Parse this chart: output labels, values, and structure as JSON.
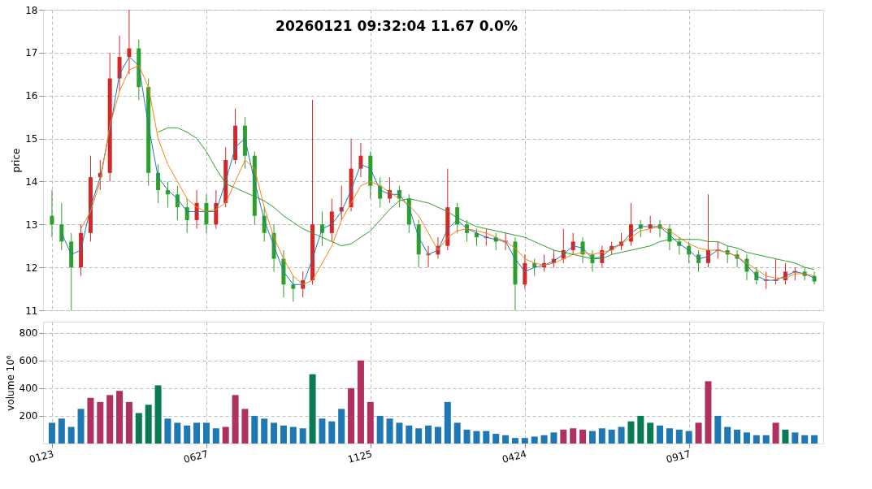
{
  "chart_data": [
    {
      "type": "candlestick",
      "title": "20260121 09:32:04   11.67 0.0%",
      "ylabel": "price",
      "ylim": [
        11,
        18
      ],
      "yticks": [
        11,
        12,
        13,
        14,
        15,
        16,
        17,
        18
      ],
      "grid": true,
      "tick_labels": "y",
      "categories": [
        "0123",
        null,
        null,
        null,
        null,
        null,
        null,
        null,
        null,
        null,
        null,
        null,
        null,
        null,
        null,
        null,
        "0627",
        null,
        null,
        null,
        null,
        null,
        null,
        null,
        null,
        null,
        null,
        null,
        null,
        null,
        null,
        null,
        null,
        "1125",
        null,
        null,
        null,
        null,
        null,
        null,
        null,
        null,
        null,
        null,
        null,
        null,
        null,
        null,
        null,
        "0424",
        null,
        null,
        null,
        null,
        null,
        null,
        null,
        null,
        null,
        null,
        null,
        null,
        null,
        null,
        null,
        null,
        "0917",
        null,
        null,
        null,
        null,
        null,
        null,
        null,
        null,
        null,
        null,
        null,
        null,
        null
      ],
      "ohlc": [
        [
          13.2,
          13.8,
          12.7,
          13.0
        ],
        [
          13.0,
          13.5,
          12.4,
          12.6
        ],
        [
          12.6,
          12.8,
          11.0,
          12.0
        ],
        [
          12.0,
          13.0,
          11.8,
          12.8
        ],
        [
          12.8,
          14.6,
          12.6,
          14.1
        ],
        [
          14.1,
          14.5,
          13.8,
          14.2
        ],
        [
          14.2,
          17.0,
          14.0,
          16.4
        ],
        [
          16.4,
          17.4,
          16.1,
          16.9
        ],
        [
          16.9,
          18.0,
          16.5,
          17.1
        ],
        [
          17.1,
          17.3,
          15.9,
          16.2
        ],
        [
          16.2,
          16.4,
          13.9,
          14.2
        ],
        [
          14.2,
          14.4,
          13.5,
          13.8
        ],
        [
          13.8,
          14.0,
          13.4,
          13.7
        ],
        [
          13.7,
          13.9,
          13.1,
          13.4
        ],
        [
          13.4,
          13.6,
          12.8,
          13.1
        ],
        [
          13.1,
          13.8,
          12.9,
          13.5
        ],
        [
          13.5,
          13.7,
          12.8,
          13.0
        ],
        [
          13.0,
          13.8,
          12.9,
          13.5
        ],
        [
          13.5,
          14.8,
          13.4,
          14.5
        ],
        [
          14.5,
          15.7,
          14.4,
          15.3
        ],
        [
          15.3,
          15.5,
          14.3,
          14.6
        ],
        [
          14.6,
          14.7,
          13.0,
          13.2
        ],
        [
          13.2,
          13.4,
          12.6,
          12.8
        ],
        [
          12.8,
          13.0,
          11.9,
          12.2
        ],
        [
          12.2,
          12.4,
          11.3,
          11.6
        ],
        [
          11.6,
          11.8,
          11.2,
          11.5
        ],
        [
          11.5,
          11.9,
          11.3,
          11.7
        ],
        [
          11.7,
          15.9,
          11.6,
          13.0
        ],
        [
          13.0,
          13.3,
          12.5,
          12.8
        ],
        [
          12.8,
          13.6,
          12.6,
          13.3
        ],
        [
          13.3,
          13.9,
          13.1,
          13.4
        ],
        [
          13.4,
          15.0,
          13.3,
          14.3
        ],
        [
          14.3,
          14.9,
          14.1,
          14.6
        ],
        [
          14.6,
          14.7,
          13.6,
          13.9
        ],
        [
          13.9,
          14.1,
          13.4,
          13.6
        ],
        [
          13.6,
          14.1,
          13.5,
          13.8
        ],
        [
          13.8,
          13.9,
          13.4,
          13.6
        ],
        [
          13.6,
          13.7,
          12.8,
          13.0
        ],
        [
          13.0,
          13.1,
          12.0,
          12.3
        ],
        [
          12.3,
          12.5,
          12.0,
          12.3
        ],
        [
          12.3,
          12.7,
          12.2,
          12.5
        ],
        [
          12.5,
          14.3,
          12.4,
          13.4
        ],
        [
          13.4,
          13.5,
          12.8,
          13.0
        ],
        [
          13.0,
          13.1,
          12.6,
          12.8
        ],
        [
          12.8,
          12.9,
          12.5,
          12.7
        ],
        [
          12.7,
          12.9,
          12.5,
          12.7
        ],
        [
          12.7,
          12.8,
          12.4,
          12.6
        ],
        [
          12.6,
          12.8,
          12.4,
          12.6
        ],
        [
          12.6,
          12.7,
          11.0,
          11.6
        ],
        [
          11.6,
          12.3,
          11.5,
          12.1
        ],
        [
          12.1,
          12.2,
          11.8,
          12.0
        ],
        [
          12.0,
          12.3,
          11.9,
          12.1
        ],
        [
          12.1,
          12.4,
          12.0,
          12.2
        ],
        [
          12.2,
          12.9,
          12.1,
          12.4
        ],
        [
          12.4,
          12.8,
          12.3,
          12.6
        ],
        [
          12.6,
          12.7,
          12.1,
          12.3
        ],
        [
          12.3,
          12.4,
          11.9,
          12.1
        ],
        [
          12.1,
          12.5,
          12.0,
          12.4
        ],
        [
          12.4,
          12.6,
          12.3,
          12.5
        ],
        [
          12.5,
          12.8,
          12.4,
          12.6
        ],
        [
          12.6,
          13.5,
          12.5,
          13.0
        ],
        [
          13.0,
          13.1,
          12.7,
          12.9
        ],
        [
          12.9,
          13.2,
          12.8,
          13.0
        ],
        [
          13.0,
          13.1,
          12.7,
          12.9
        ],
        [
          12.9,
          13.0,
          12.4,
          12.6
        ],
        [
          12.6,
          12.7,
          12.3,
          12.5
        ],
        [
          12.5,
          12.6,
          12.1,
          12.3
        ],
        [
          12.3,
          12.4,
          11.9,
          12.1
        ],
        [
          12.1,
          13.7,
          12.0,
          12.4
        ],
        [
          12.4,
          12.6,
          12.2,
          12.4
        ],
        [
          12.4,
          12.5,
          12.1,
          12.3
        ],
        [
          12.3,
          12.4,
          12.0,
          12.2
        ],
        [
          12.2,
          12.3,
          11.7,
          11.9
        ],
        [
          11.9,
          12.0,
          11.6,
          11.7
        ],
        [
          11.7,
          11.9,
          11.5,
          11.7
        ],
        [
          11.7,
          12.2,
          11.6,
          11.7
        ],
        [
          11.7,
          12.1,
          11.6,
          11.9
        ],
        [
          11.9,
          12.0,
          11.7,
          11.9
        ],
        [
          11.9,
          12.0,
          11.7,
          11.8
        ],
        [
          11.8,
          11.9,
          11.6,
          11.67
        ]
      ],
      "series": [
        {
          "type": "line",
          "color": "#1f77b4",
          "values": [
            null,
            12.8,
            12.3,
            12.4,
            13.4,
            14.1,
            15.2,
            16.5,
            16.9,
            16.7,
            15.3,
            14.1,
            13.8,
            13.6,
            13.3,
            13.3,
            13.3,
            13.3,
            14.0,
            14.8,
            15.0,
            14.0,
            13.1,
            12.5,
            11.9,
            11.6,
            11.6,
            12.2,
            12.9,
            13.0,
            13.3,
            13.8,
            14.4,
            14.3,
            13.8,
            13.7,
            13.7,
            13.4,
            12.7,
            12.3,
            12.4,
            12.9,
            13.1,
            12.9,
            12.8,
            12.7,
            12.65,
            12.6,
            12.2,
            11.9,
            12.0,
            12.05,
            12.15,
            12.3,
            12.5,
            12.45,
            12.2,
            12.25,
            12.45,
            12.55,
            12.8,
            12.95,
            12.95,
            12.95,
            12.75,
            12.55,
            12.4,
            12.2,
            12.25,
            12.4,
            12.35,
            12.25,
            12.05,
            11.8,
            11.7,
            11.7,
            11.8,
            11.9,
            11.85,
            11.75
          ]
        },
        {
          "type": "line",
          "color": "#ff7f0e",
          "values": [
            null,
            null,
            null,
            12.9,
            13.3,
            14.0,
            15.3,
            16.1,
            16.6,
            16.7,
            16.2,
            15.0,
            14.4,
            14.0,
            13.6,
            13.4,
            13.3,
            13.35,
            13.5,
            14.0,
            14.5,
            14.3,
            13.4,
            12.7,
            12.2,
            11.8,
            11.6,
            11.7,
            12.1,
            12.5,
            13.1,
            13.5,
            13.9,
            14.0,
            13.9,
            13.75,
            13.6,
            13.45,
            13.2,
            12.8,
            12.4,
            12.7,
            12.85,
            12.9,
            12.85,
            12.8,
            12.7,
            12.6,
            12.45,
            12.2,
            12.1,
            12.05,
            12.1,
            12.2,
            12.3,
            12.35,
            12.3,
            12.35,
            12.4,
            12.55,
            12.7,
            12.85,
            12.9,
            12.95,
            12.85,
            12.7,
            12.55,
            12.45,
            12.4,
            12.4,
            12.35,
            12.25,
            12.1,
            11.95,
            11.8,
            11.75,
            11.75,
            11.85,
            11.85,
            11.8
          ]
        },
        {
          "type": "line",
          "color": "#2ca02c",
          "values": [
            null,
            null,
            null,
            null,
            null,
            null,
            null,
            null,
            null,
            null,
            null,
            15.15,
            15.25,
            15.25,
            15.15,
            15.0,
            14.7,
            14.3,
            13.95,
            13.85,
            13.75,
            13.65,
            13.55,
            13.4,
            13.2,
            13.05,
            12.9,
            12.8,
            12.7,
            12.6,
            12.5,
            12.55,
            12.7,
            12.85,
            13.1,
            13.35,
            13.55,
            13.6,
            13.55,
            13.5,
            13.4,
            13.3,
            13.15,
            13.05,
            12.95,
            12.9,
            12.85,
            12.8,
            12.75,
            12.7,
            12.6,
            12.5,
            12.4,
            12.35,
            12.3,
            12.25,
            12.2,
            12.2,
            12.3,
            12.35,
            12.4,
            12.45,
            12.5,
            12.6,
            12.65,
            12.65,
            12.65,
            12.65,
            12.6,
            12.6,
            12.5,
            12.45,
            12.35,
            12.3,
            12.25,
            12.2,
            12.15,
            12.1,
            12.0,
            11.95
          ]
        }
      ]
    },
    {
      "type": "bar",
      "ylabel": "volume 10⁶",
      "ylim": [
        0,
        880
      ],
      "yticks": [
        200,
        400,
        600,
        800
      ],
      "grid": true,
      "categories": [
        "0123",
        null,
        null,
        null,
        null,
        null,
        null,
        null,
        null,
        null,
        null,
        null,
        null,
        null,
        null,
        null,
        "0627",
        null,
        null,
        null,
        null,
        null,
        null,
        null,
        null,
        null,
        null,
        null,
        null,
        null,
        null,
        null,
        null,
        "1125",
        null,
        null,
        null,
        null,
        null,
        null,
        null,
        null,
        null,
        null,
        null,
        null,
        null,
        null,
        null,
        "0424",
        null,
        null,
        null,
        null,
        null,
        null,
        null,
        null,
        null,
        null,
        null,
        null,
        null,
        null,
        null,
        null,
        "0917",
        null,
        null,
        null,
        null,
        null,
        null,
        null,
        null,
        null,
        null,
        null,
        null,
        null
      ],
      "values": [
        150,
        180,
        120,
        250,
        330,
        300,
        350,
        380,
        300,
        220,
        280,
        420,
        180,
        150,
        130,
        150,
        150,
        110,
        120,
        350,
        250,
        200,
        180,
        150,
        130,
        120,
        110,
        500,
        180,
        160,
        250,
        400,
        600,
        300,
        200,
        180,
        150,
        130,
        110,
        130,
        120,
        300,
        150,
        100,
        90,
        90,
        70,
        60,
        40,
        40,
        50,
        60,
        80,
        100,
        110,
        100,
        90,
        110,
        100,
        120,
        160,
        200,
        150,
        130,
        110,
        100,
        90,
        150,
        450,
        200,
        120,
        100,
        80,
        60,
        60,
        150,
        100,
        80,
        60,
        60
      ],
      "colors": [
        "#1f77b4",
        "#1f77b4",
        "#1f77b4",
        "#1f77b4",
        "#b03060",
        "#b03060",
        "#b03060",
        "#b03060",
        "#b03060",
        "#0a7a55",
        "#0a7a55",
        "#0a7a55",
        "#1f77b4",
        "#1f77b4",
        "#1f77b4",
        "#1f77b4",
        "#1f77b4",
        "#1f77b4",
        "#b03060",
        "#b03060",
        "#b03060",
        "#1f77b4",
        "#1f77b4",
        "#1f77b4",
        "#1f77b4",
        "#1f77b4",
        "#1f77b4",
        "#0a7a55",
        "#1f77b4",
        "#1f77b4",
        "#1f77b4",
        "#b03060",
        "#b03060",
        "#b03060",
        "#1f77b4",
        "#1f77b4",
        "#1f77b4",
        "#1f77b4",
        "#1f77b4",
        "#1f77b4",
        "#1f77b4",
        "#1f77b4",
        "#1f77b4",
        "#1f77b4",
        "#1f77b4",
        "#1f77b4",
        "#1f77b4",
        "#1f77b4",
        "#1f77b4",
        "#1f77b4",
        "#1f77b4",
        "#1f77b4",
        "#1f77b4",
        "#b03060",
        "#b03060",
        "#b03060",
        "#1f77b4",
        "#1f77b4",
        "#1f77b4",
        "#1f77b4",
        "#0a7a55",
        "#0a7a55",
        "#0a7a55",
        "#1f77b4",
        "#1f77b4",
        "#1f77b4",
        "#1f77b4",
        "#b03060",
        "#b03060",
        "#1f77b4",
        "#1f77b4",
        "#1f77b4",
        "#1f77b4",
        "#1f77b4",
        "#1f77b4",
        "#b03060",
        "#0a7a55",
        "#1f77b4",
        "#1f77b4",
        "#1f77b4"
      ]
    }
  ]
}
